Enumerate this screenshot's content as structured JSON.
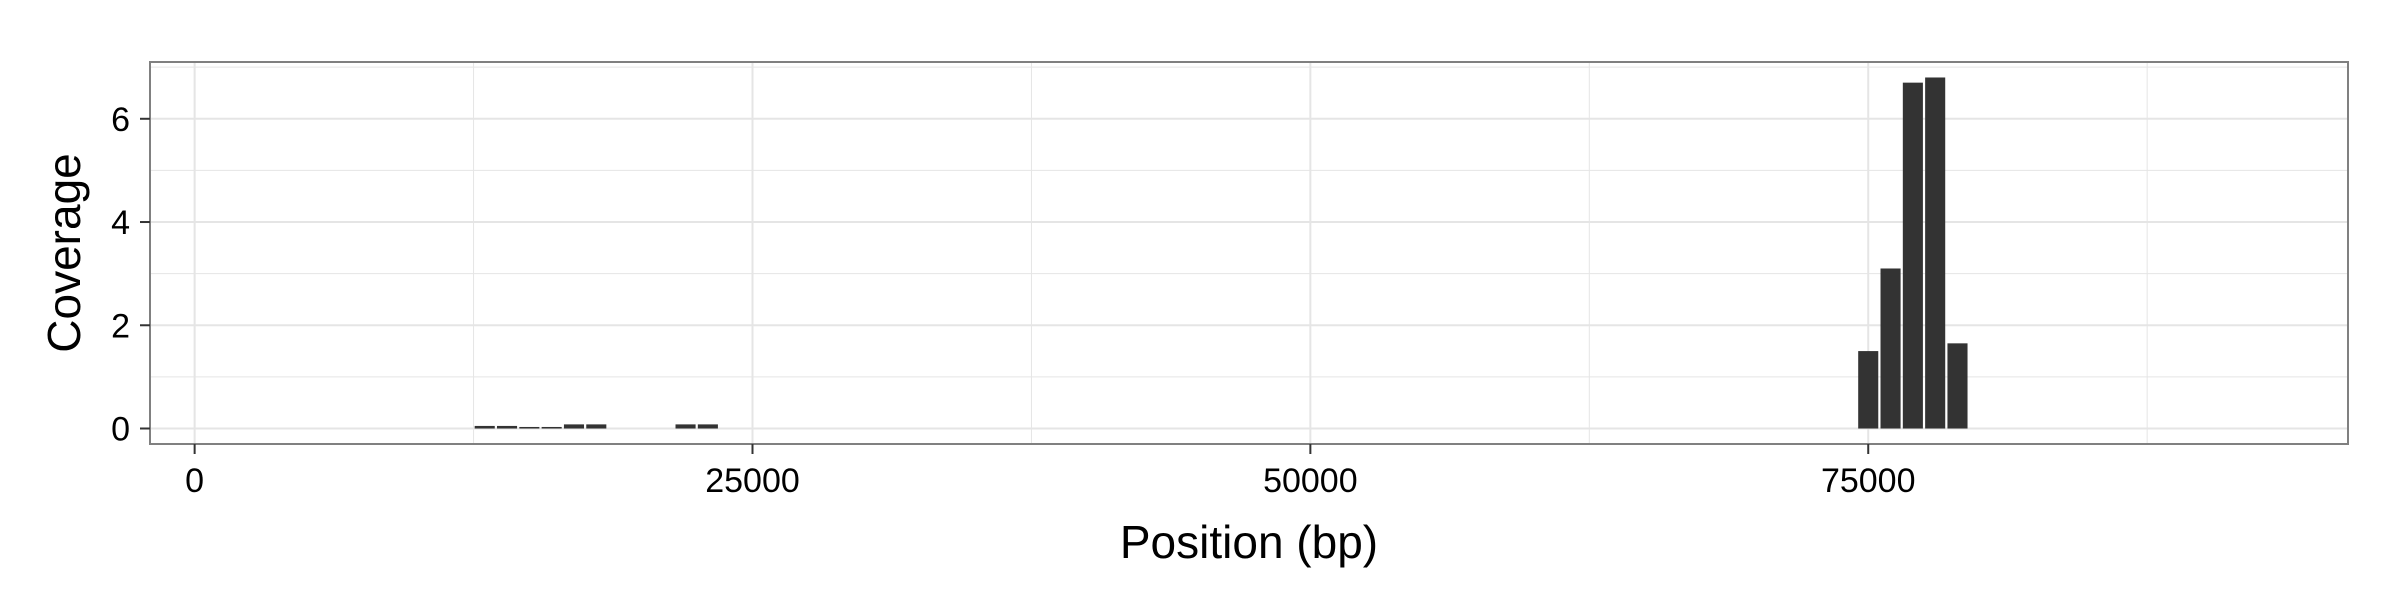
{
  "chart_data": {
    "type": "bar",
    "title": "",
    "xlabel": "Position (bp)",
    "ylabel": "Coverage",
    "xlim": [
      -2000,
      96500
    ],
    "ylim": [
      -0.3,
      7.1
    ],
    "x_ticks": [
      0,
      25000,
      50000,
      75000
    ],
    "x_tick_labels": [
      "0",
      "25000",
      "50000",
      "75000"
    ],
    "y_ticks": [
      0,
      2,
      4,
      6
    ],
    "y_tick_labels": [
      "0",
      "2",
      "4",
      "6"
    ],
    "grid": true,
    "legend": "none",
    "bar_width": 900,
    "bar_color": "#333333",
    "panel_border_color": "#808080",
    "grid_color": "#e5e5e5",
    "bars": [
      {
        "x": 13000,
        "value": 0.05
      },
      {
        "x": 14000,
        "value": 0.05
      },
      {
        "x": 15000,
        "value": 0.03
      },
      {
        "x": 16000,
        "value": 0.03
      },
      {
        "x": 17000,
        "value": 0.08
      },
      {
        "x": 18000,
        "value": 0.08
      },
      {
        "x": 22000,
        "value": 0.08
      },
      {
        "x": 23000,
        "value": 0.08
      },
      {
        "x": 75000,
        "value": 1.5
      },
      {
        "x": 76000,
        "value": 3.1
      },
      {
        "x": 77000,
        "value": 6.7
      },
      {
        "x": 78000,
        "value": 6.8
      },
      {
        "x": 79000,
        "value": 1.65
      }
    ]
  }
}
